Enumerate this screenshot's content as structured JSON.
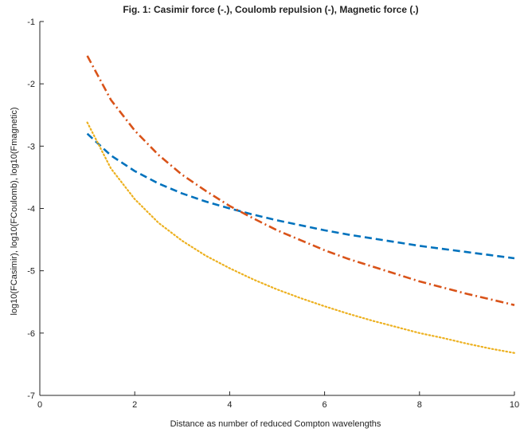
{
  "chart_data": {
    "type": "line",
    "title": "Fig. 1: Casimir force (-.), Coulomb repulsion (-), Magnetic force (.)",
    "xlabel": "Distance as number of reduced Compton wavelengths",
    "ylabel": "log10(FCasimir), log10(FCoulomb), log10(Fmagnetic)",
    "xlim": [
      0,
      10
    ],
    "ylim": [
      -7,
      -1
    ],
    "x_ticks": [
      0,
      2,
      4,
      6,
      8,
      10
    ],
    "x_tick_labels": [
      "0",
      "2",
      "4",
      "6",
      "8",
      "10"
    ],
    "y_ticks": [
      -7,
      -6,
      -5,
      -4,
      -3,
      -2,
      -1
    ],
    "y_tick_labels": [
      "-7",
      "-6",
      "-5",
      "-4",
      "-3",
      "-2",
      "-1"
    ],
    "grid": false,
    "series": [
      {
        "color": "#0072BD",
        "dash": "dashed",
        "x": [
          1,
          1.5,
          2,
          2.5,
          3,
          3.5,
          4,
          4.5,
          5,
          5.5,
          6,
          6.5,
          7,
          7.5,
          8,
          8.5,
          9,
          9.5,
          10
        ],
        "y": [
          -2.8,
          -3.15,
          -3.4,
          -3.6,
          -3.76,
          -3.89,
          -4.0,
          -4.1,
          -4.19,
          -4.27,
          -4.35,
          -4.42,
          -4.48,
          -4.54,
          -4.6,
          -4.65,
          -4.7,
          -4.75,
          -4.8
        ]
      },
      {
        "color": "#D95319",
        "dash": "dashdot",
        "x": [
          1,
          1.5,
          2,
          2.5,
          3,
          3.5,
          4,
          4.5,
          5,
          5.5,
          6,
          6.5,
          7,
          7.5,
          8,
          8.5,
          9,
          9.5,
          10
        ],
        "y": [
          -1.55,
          -2.26,
          -2.75,
          -3.14,
          -3.46,
          -3.72,
          -3.96,
          -4.16,
          -4.35,
          -4.51,
          -4.67,
          -4.81,
          -4.93,
          -5.05,
          -5.17,
          -5.27,
          -5.37,
          -5.46,
          -5.55
        ]
      },
      {
        "color": "#EDB120",
        "dash": "dotted",
        "x": [
          1,
          1.5,
          2,
          2.5,
          3,
          3.5,
          4,
          4.5,
          5,
          5.5,
          6,
          6.5,
          7,
          7.5,
          8,
          8.5,
          9,
          9.5,
          10
        ],
        "y": [
          -2.62,
          -3.36,
          -3.85,
          -4.23,
          -4.52,
          -4.76,
          -4.96,
          -5.14,
          -5.3,
          -5.44,
          -5.57,
          -5.69,
          -5.8,
          -5.9,
          -6.0,
          -6.08,
          -6.17,
          -6.25,
          -6.32
        ]
      }
    ]
  }
}
